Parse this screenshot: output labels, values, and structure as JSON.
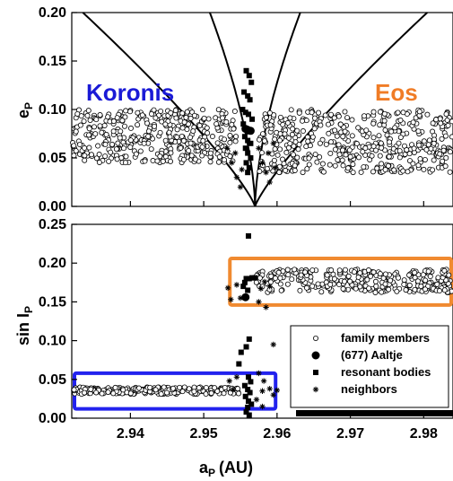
{
  "chart_data": [
    {
      "type": "scatter",
      "panel": "top",
      "ylabel": "e",
      "ylabel_sub": "P",
      "xlim": [
        2.932,
        2.984
      ],
      "ylim": [
        0.0,
        0.2
      ],
      "yticks": [
        "0.00",
        "0.05",
        "0.10",
        "0.15",
        "0.20"
      ],
      "family_labels": [
        {
          "text": "Koronis",
          "color": "#1a1ad6",
          "x": 2.942,
          "y": 0.099
        },
        {
          "text": "Eos",
          "color": "#f07c26",
          "x": 2.974,
          "y": 0.099
        }
      ],
      "series": [
        {
          "name": "family members",
          "marker": "open-circle",
          "description": "Koronis family e ~0.05-0.10 for a<2.955; Eos family e ~0.04-0.10 for a>2.957",
          "bands": [
            {
              "x": [
                2.932,
                2.9545
              ],
              "y": [
                0.045,
                0.1
              ]
            },
            {
              "x": [
                2.9575,
                2.984
              ],
              "y": [
                0.035,
                0.1
              ]
            }
          ]
        },
        {
          "name": "resonant bodies",
          "marker": "filled-square",
          "points": [
            [
              2.9558,
              0.14
            ],
            [
              2.9562,
              0.135
            ],
            [
              2.9565,
              0.128
            ],
            [
              2.9555,
              0.118
            ],
            [
              2.956,
              0.114
            ],
            [
              2.9563,
              0.11
            ],
            [
              2.9553,
              0.1
            ],
            [
              2.9557,
              0.097
            ],
            [
              2.9561,
              0.095
            ],
            [
              2.9566,
              0.09
            ],
            [
              2.9554,
              0.085
            ],
            [
              2.9558,
              0.08
            ],
            [
              2.9562,
              0.077
            ],
            [
              2.9556,
              0.072
            ],
            [
              2.956,
              0.068
            ],
            [
              2.9564,
              0.065
            ],
            [
              2.9557,
              0.06
            ],
            [
              2.956,
              0.055
            ],
            [
              2.9564,
              0.05
            ],
            [
              2.9558,
              0.045
            ],
            [
              2.9562,
              0.04
            ],
            [
              2.956,
              0.035
            ]
          ]
        },
        {
          "name": "(677) Aaltje",
          "marker": "filled-circle",
          "points": [
            [
              2.9557,
              0.08
            ],
            [
              2.956,
              0.079
            ],
            [
              2.9564,
              0.078
            ]
          ]
        },
        {
          "name": "neighbors",
          "marker": "asterisk",
          "points": [
            [
              2.9532,
              0.06
            ],
            [
              2.9538,
              0.045
            ],
            [
              2.9543,
              0.055
            ],
            [
              2.9545,
              0.03
            ],
            [
              2.955,
              0.02
            ],
            [
              2.9552,
              0.038
            ],
            [
              2.9575,
              0.06
            ],
            [
              2.958,
              0.045
            ],
            [
              2.9585,
              0.035
            ],
            [
              2.9588,
              0.055
            ],
            [
              2.959,
              0.025
            ],
            [
              2.9595,
              0.065
            ],
            [
              2.9598,
              0.04
            ]
          ]
        }
      ],
      "curves": "resonance boundary curves converging near a=2.957"
    },
    {
      "type": "scatter",
      "panel": "bottom",
      "xlabel": "a",
      "xlabel_sub": "P",
      "xlabel_unit": "(AU)",
      "ylabel": "sin I",
      "ylabel_sub": "P",
      "xlim": [
        2.932,
        2.984
      ],
      "ylim": [
        0.0,
        0.25
      ],
      "xticks": [
        "2.94",
        "2.95",
        "2.96",
        "2.97",
        "2.98"
      ],
      "yticks": [
        "0.00",
        "0.05",
        "0.10",
        "0.15",
        "0.20",
        "0.25"
      ],
      "boxes": [
        {
          "color": "#2222ee",
          "x": [
            2.932,
            2.9598
          ],
          "y": [
            0.012,
            0.058
          ]
        },
        {
          "color": "#f08a30",
          "x": [
            2.9532,
            2.984
          ],
          "y": [
            0.146,
            0.206
          ]
        }
      ],
      "series": [
        {
          "name": "family members",
          "marker": "open-circle",
          "bands": [
            {
              "x": [
                2.932,
                2.955
              ],
              "y": [
                0.031,
                0.04
              ]
            },
            {
              "x": [
                2.957,
                2.984
              ],
              "y": [
                0.162,
                0.192
              ]
            }
          ]
        },
        {
          "name": "resonant bodies",
          "marker": "filled-square",
          "points": [
            [
              2.9561,
              0.235
            ],
            [
              2.9558,
              0.18
            ],
            [
              2.9562,
              0.18
            ],
            [
              2.9566,
              0.181
            ],
            [
              2.957,
              0.181
            ],
            [
              2.9556,
              0.175
            ],
            [
              2.9554,
              0.17
            ],
            [
              2.956,
              0.165
            ],
            [
              2.9562,
              0.102
            ],
            [
              2.9558,
              0.092
            ],
            [
              2.9551,
              0.085
            ],
            [
              2.9548,
              0.07
            ],
            [
              2.9561,
              0.053
            ],
            [
              2.9564,
              0.047
            ],
            [
              2.9556,
              0.042
            ],
            [
              2.956,
              0.037
            ],
            [
              2.9563,
              0.033
            ],
            [
              2.9557,
              0.028
            ],
            [
              2.9561,
              0.022
            ],
            [
              2.9565,
              0.018
            ],
            [
              2.956,
              0.014
            ],
            [
              2.9558,
              0.008
            ],
            [
              2.9562,
              0.004
            ]
          ]
        },
        {
          "name": "(677) Aaltje",
          "marker": "filled-circle",
          "points": [
            [
              2.9557,
              0.156
            ]
          ]
        },
        {
          "name": "neighbors",
          "marker": "asterisk",
          "points": [
            [
              2.9533,
              0.168
            ],
            [
              2.9537,
              0.153
            ],
            [
              2.9545,
              0.172
            ],
            [
              2.955,
              0.155
            ],
            [
              2.9575,
              0.15
            ],
            [
              2.9578,
              0.167
            ],
            [
              2.9583,
              0.176
            ],
            [
              2.9585,
              0.143
            ],
            [
              2.959,
              0.17
            ],
            [
              2.9535,
              0.048
            ],
            [
              2.954,
              0.037
            ],
            [
              2.9545,
              0.053
            ],
            [
              2.9575,
              0.058
            ],
            [
              2.958,
              0.035
            ],
            [
              2.9582,
              0.048
            ],
            [
              2.959,
              0.038
            ],
            [
              2.9595,
              0.03
            ],
            [
              2.96,
              0.036
            ],
            [
              2.9595,
              0.095
            ],
            [
              2.958,
              0.015
            ],
            [
              2.9572,
              0.024
            ]
          ]
        }
      ],
      "legend": {
        "placement": "right",
        "entries": [
          {
            "marker": "open-circle",
            "label": "family members"
          },
          {
            "marker": "filled-circle",
            "label": "(677) Aaltje"
          },
          {
            "marker": "filled-square",
            "label": "resonant bodies"
          },
          {
            "marker": "asterisk",
            "label": "neighbors"
          }
        ]
      }
    }
  ]
}
